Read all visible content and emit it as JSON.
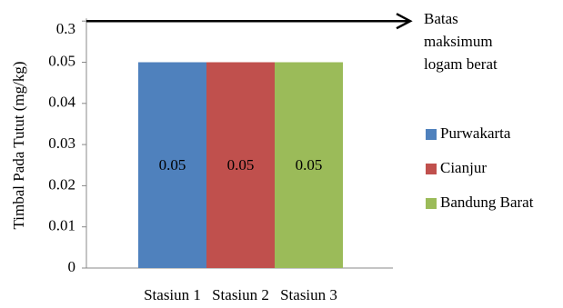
{
  "chart_data": {
    "type": "bar",
    "y_label": "Timbal Pada Tutut (mg/kg)",
    "categories": [
      "Stasiun 1",
      "Stasiun 2",
      "Stasiun 3"
    ],
    "values": [
      0.05,
      0.05,
      0.05
    ],
    "colors": [
      "#4f81bd",
      "#c0504d",
      "#9bbb59"
    ],
    "legend": [
      "Purwakarta",
      "Cianjur",
      "Bandung Barat"
    ],
    "ylim": [
      0,
      0.3
    ],
    "yticks": [
      0,
      0.01,
      0.02,
      0.03,
      0.04,
      0.05,
      0.3
    ],
    "yscale": "piecewise",
    "limit": {
      "value": 0.3,
      "label": [
        "Batas",
        "maksimum",
        "logam berat"
      ]
    },
    "legend_position": "right"
  }
}
